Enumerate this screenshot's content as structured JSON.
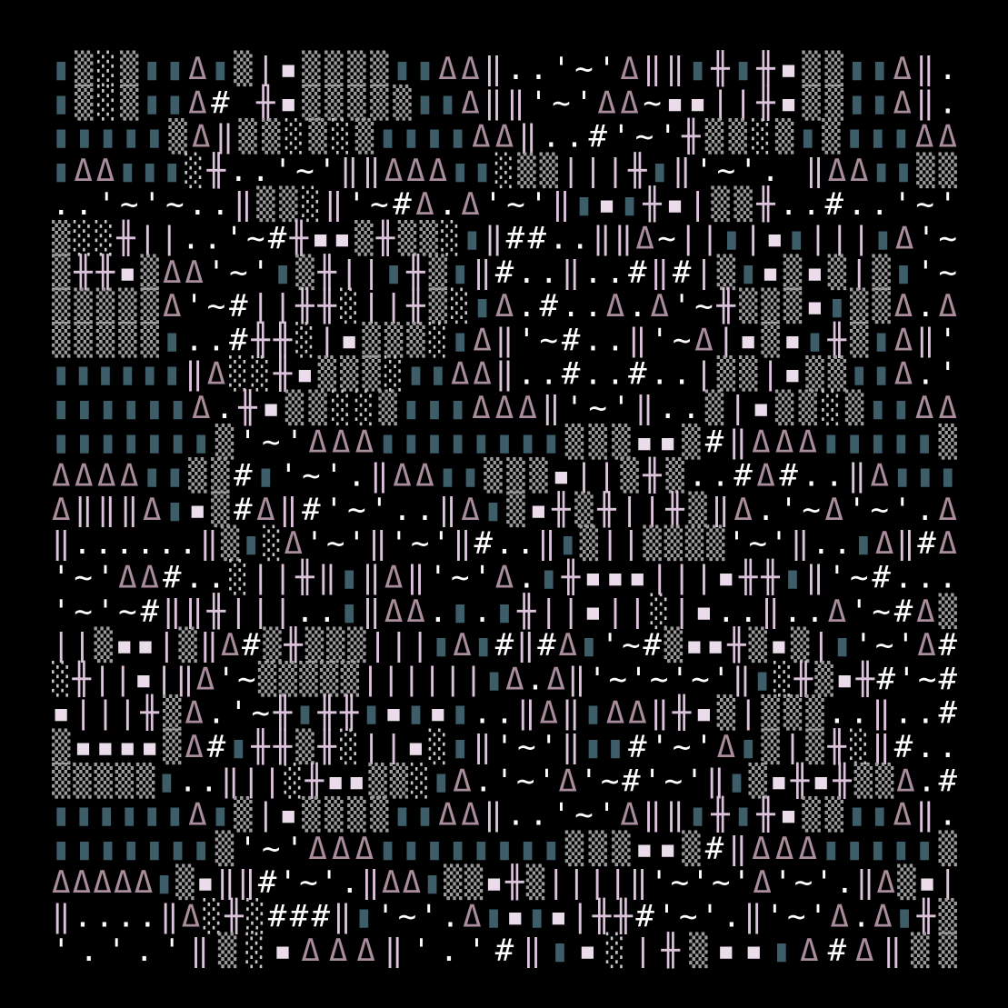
{
  "art": {
    "palette": {
      "▮": "#3d5d69",
      "▒": "#9c9c9c",
      "░": "#c8c8c8",
      "▪": "#eadcea",
      "Δ": "#a98d9c",
      "‖": "#dcc3dc",
      "|": "#dcc3dc",
      "╫": "#dcc3dc",
      "#": "#ffffff",
      "'": "#ffffff",
      "~": "#ffffff",
      ".": "#ffffff"
    },
    "rows": [
      "▮▒░▒▮▮Δ▮▒|▪▒▒▒▒▮▮ΔΔ‖..'~'Δ‖‖▮╫▮╫▪▒▒▮▮Δ‖.",
      "▮▒░▒▮▮Δ# ╫▪▒▒▒▒▒▮▮Δ‖‖'~'ΔΔ~▪▪||╫▪▒▒▮▮Δ‖.",
      "▮▮▮▮▮▒Δ‖▒▒░▒░▒▮▮▮▮ΔΔ‖..#'~'╫▒▒░▒▮▒▮▮▮ΔΔ",
      "▮ΔΔ▮▮▮░╫..'~'‖‖ΔΔΔ▮▮░▒▒|||╫▮‖'~'. ‖ΔΔ▮▮▒▒",
      "..'~'~..‖▒▒░‖'~#Δ.Δ'~'‖▮▪▮╫▪|▒▒╫..#..'~'",
      "▒░░╫||..'~#╫▪▪▒╫▒▒░▮‖##..‖‖Δ~||▮|▪▮|||▮Δ'~",
      "▒╫╫▪▒ΔΔ'~'▮▒╫||▮╫▒▮‖#..‖..#‖#|▒▮▪▒▪▒|▒▮'~",
      "▒▒▒▒▒Δ'~#||╫╫░||╫▒░▮Δ.#..Δ.Δ'~╫▒▒▒▪▮▒▒Δ.Δ",
      "▒▒▒▒▒▮..#╫╫░|▪▒▒▒░▮Δ‖'~#..‖'~Δ|▪▒▪▮╫▒▮Δ‖'",
      "▮▮▮▮▮▮‖Δ░░╫▪▒▒▒░▮▮ΔΔ‖..#..#..|▒▒|▪▒▒▮▮Δ.'",
      "▮▮▮▮▮▮Δ.╫▪▒▒░░▒▮▮▮ΔΔΔ‖'~'‖..▒|▪▒▒░▒▮▮ΔΔ",
      "▮▮▮▮▮▮▮▒'~'ΔΔΔ▮▮▮▮▮▮▮▮▒▒▒▪▪▒#‖ΔΔΔ▮▮▮▮▮▒",
      "ΔΔΔΔ▮▮▒▒#▮'~'.‖ΔΔ▮▮▒▒▒▪||▒╫▒..#Δ#..‖Δ▮▮▮",
      "Δ‖‖‖Δ▮▪▒#Δ‖#'~'..‖Δ▮▒▪╫▒╫||╫▒‖Δ.'~Δ'~'.Δ",
      "‖......‖▒▮░Δ'~'‖'~'‖#..‖▮▒||▒▒▒▒'~'‖..▮Δ‖#Δ",
      "'~'ΔΔ#..░||╫‖▮‖Δ‖'~'Δ.▮╫▪▪▪|||▪╫╫▮‖'~#...",
      "'~'~#‖‖╫|||..▮‖ΔΔ.▮.▮╫||▪||░|▪..‖..Δ'~#Δ▒",
      "||▒▪▪|▒‖Δ#▒╫▒▒▒|||▮Δ▮#‖#Δ▮'~#▒▪▪╫▒▪▒|▮'~'Δ#",
      "░╫||▪|‖Δ'~▒▒▒▒▒||||||▮Δ.Δ‖'~'~'~'‖▮░╫▒▪╫#'~#",
      "▪|||╫▒Δ.'~╫▮╫╫▮▪▮▪▮..‖Δ‖▮ΔΔ‖╫▪▒|▒▒▒..‖..#",
      "▒▪▪▪▪▒Δ#▮╫╫▒╫░||▪░▮‖'~'‖▮▮#'~'Δ▮▒|▒╫░‖#..",
      "▒▒▒▒▒▮..‖||░╫▪▪▒▒░▮Δ.'~'Δ'~#'~'‖▮▒▪╫▪╫▒▒Δ.#",
      "▮▮▮▮▮▮Δ▮▒|▪▒▒▒▒▮▮ΔΔ‖..'~'Δ‖‖▮╫▮╫▪▒▒▮▮Δ‖.",
      "▮▮▮▮▮▮▮▒'~'ΔΔΔ▮▮▮▮▮▮▮▮▒▒▒▪▪▒#‖ΔΔΔ▮▮▮▮▮▒",
      "ΔΔΔΔΔ▮▒▪‖‖#'~'.‖ΔΔ▮▒▒▪╫▒||||‖'~'~'Δ'~'.‖Δ▒▪|",
      "‖....‖Δ░╫░###‖▮'~'.Δ▮▪▮▪|╫╫#'~'.‖'~'Δ.Δ▮╫▒",
      "'.'.'‖▒░▪ΔΔΔ‖'.'#‖▮▪░|╫▒▪▪▮Δ#Δ‖▒▒"
    ]
  }
}
